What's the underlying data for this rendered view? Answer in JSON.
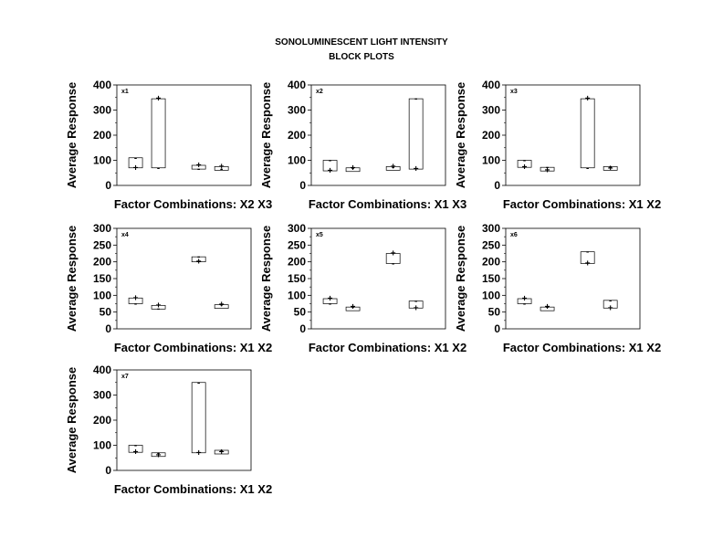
{
  "title_line1": "SONOLUMINESCENT LIGHT INTENSITY",
  "title_line2": "BLOCK PLOTS",
  "chart_data": [
    {
      "type": "block",
      "label": "x1",
      "ylabel": "Average Response",
      "xlabel": "Factor Combinations: X2 X3",
      "ylim": [
        0,
        400
      ],
      "yticks": [
        0,
        100,
        200,
        300,
        400
      ],
      "blocks": [
        {
          "minus": 110,
          "plus": 70
        },
        {
          "minus": 70,
          "plus": 345
        },
        {
          "minus": 65,
          "plus": 80
        },
        {
          "minus": 65,
          "plus": 75
        }
      ]
    },
    {
      "type": "block",
      "label": "x2",
      "ylabel": "Average Response",
      "xlabel": "Factor Combinations: X1 X3",
      "ylim": [
        0,
        400
      ],
      "yticks": [
        0,
        100,
        200,
        300,
        400
      ],
      "blocks": [
        {
          "minus": 100,
          "plus": 58
        },
        {
          "minus": 70,
          "plus": 70
        },
        {
          "minus": 72,
          "plus": 75
        },
        {
          "minus": 345,
          "plus": 65
        }
      ]
    },
    {
      "type": "block",
      "label": "x3",
      "ylabel": "Average Response",
      "xlabel": "Factor Combinations: X1 X2",
      "ylim": [
        0,
        400
      ],
      "yticks": [
        0,
        100,
        200,
        300,
        400
      ],
      "blocks": [
        {
          "minus": 100,
          "plus": 72
        },
        {
          "minus": 72,
          "plus": 60
        },
        {
          "minus": 70,
          "plus": 345
        },
        {
          "minus": 75,
          "plus": 68
        }
      ]
    },
    {
      "type": "block",
      "label": "x4",
      "ylabel": "Average Response",
      "xlabel": "Factor Combinations: X1 X2",
      "ylim": [
        0,
        300
      ],
      "yticks": [
        0,
        50,
        100,
        150,
        200,
        250,
        300
      ],
      "blocks": [
        {
          "minus": 75,
          "plus": 92
        },
        {
          "minus": 60,
          "plus": 70
        },
        {
          "minus": 215,
          "plus": 200
        },
        {
          "minus": 72,
          "plus": 72
        }
      ]
    },
    {
      "type": "block",
      "label": "x5",
      "ylabel": "Average Response",
      "xlabel": "Factor Combinations: X1 X2",
      "ylim": [
        0,
        300
      ],
      "yticks": [
        0,
        50,
        100,
        150,
        200,
        250,
        300
      ],
      "blocks": [
        {
          "minus": 75,
          "plus": 90
        },
        {
          "minus": 65,
          "plus": 65
        },
        {
          "minus": 195,
          "plus": 225
        },
        {
          "minus": 83,
          "plus": 62
        }
      ]
    },
    {
      "type": "block",
      "label": "x6",
      "ylabel": "Average Response",
      "xlabel": "Factor Combinations: X1 X2",
      "ylim": [
        0,
        300
      ],
      "yticks": [
        0,
        50,
        100,
        150,
        200,
        250,
        300
      ],
      "blocks": [
        {
          "minus": 75,
          "plus": 90
        },
        {
          "minus": 65,
          "plus": 65
        },
        {
          "minus": 230,
          "plus": 195
        },
        {
          "minus": 85,
          "plus": 62
        }
      ]
    },
    {
      "type": "block",
      "label": "x7",
      "ylabel": "Average Response",
      "xlabel": "Factor Combinations: X1 X2",
      "ylim": [
        0,
        400
      ],
      "yticks": [
        0,
        100,
        200,
        300,
        400
      ],
      "blocks": [
        {
          "minus": 100,
          "plus": 72
        },
        {
          "minus": 70,
          "plus": 60
        },
        {
          "minus": 350,
          "plus": 70
        },
        {
          "minus": 80,
          "plus": 72
        }
      ]
    }
  ]
}
